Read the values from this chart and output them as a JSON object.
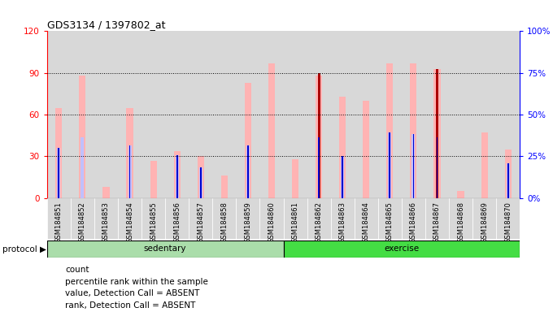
{
  "title": "GDS3134 / 1397802_at",
  "samples": [
    "GSM184851",
    "GSM184852",
    "GSM184853",
    "GSM184854",
    "GSM184855",
    "GSM184856",
    "GSM184857",
    "GSM184858",
    "GSM184859",
    "GSM184860",
    "GSM184861",
    "GSM184862",
    "GSM184863",
    "GSM184864",
    "GSM184865",
    "GSM184866",
    "GSM184867",
    "GSM184868",
    "GSM184869",
    "GSM184870"
  ],
  "value_absent": [
    65,
    88,
    8,
    65,
    27,
    34,
    30,
    16,
    83,
    97,
    28,
    88,
    73,
    70,
    97,
    97,
    93,
    5,
    47,
    35
  ],
  "rank_absent": [
    36,
    44,
    0,
    38,
    0,
    31,
    22,
    0,
    38,
    0,
    0,
    0,
    30,
    0,
    47,
    46,
    0,
    0,
    0,
    25
  ],
  "count": [
    0,
    0,
    0,
    0,
    0,
    0,
    0,
    0,
    0,
    0,
    0,
    90,
    0,
    0,
    0,
    0,
    93,
    0,
    0,
    0
  ],
  "percentile": [
    36,
    0,
    0,
    38,
    0,
    31,
    22,
    0,
    38,
    0,
    0,
    44,
    30,
    0,
    47,
    46,
    44,
    0,
    0,
    25
  ],
  "group": [
    "sedentary",
    "sedentary",
    "sedentary",
    "sedentary",
    "sedentary",
    "sedentary",
    "sedentary",
    "sedentary",
    "sedentary",
    "sedentary",
    "exercise",
    "exercise",
    "exercise",
    "exercise",
    "exercise",
    "exercise",
    "exercise",
    "exercise",
    "exercise",
    "exercise"
  ],
  "ylim_left": [
    0,
    120
  ],
  "yticks_left": [
    0,
    30,
    60,
    90,
    120
  ],
  "ytick_labels_left": [
    "0",
    "30",
    "60",
    "90",
    "120"
  ],
  "ytick_labels_right": [
    "0%",
    "25%",
    "50%",
    "75%",
    "100%"
  ],
  "color_value_absent": "#FFB3B3",
  "color_rank_absent": "#C0C0FF",
  "color_count": "#AA0000",
  "color_percentile": "#0000CC",
  "color_col_bg": "#D8D8D8",
  "color_sedentary_bg": "#AADDAA",
  "color_exercise_bg": "#44DD44",
  "bar_width": 0.28,
  "rank_bar_width": 0.14,
  "count_bar_width": 0.1,
  "pct_bar_width": 0.06,
  "group_label_sedentary": "sedentary",
  "group_label_exercise": "exercise",
  "protocol_label": "protocol"
}
